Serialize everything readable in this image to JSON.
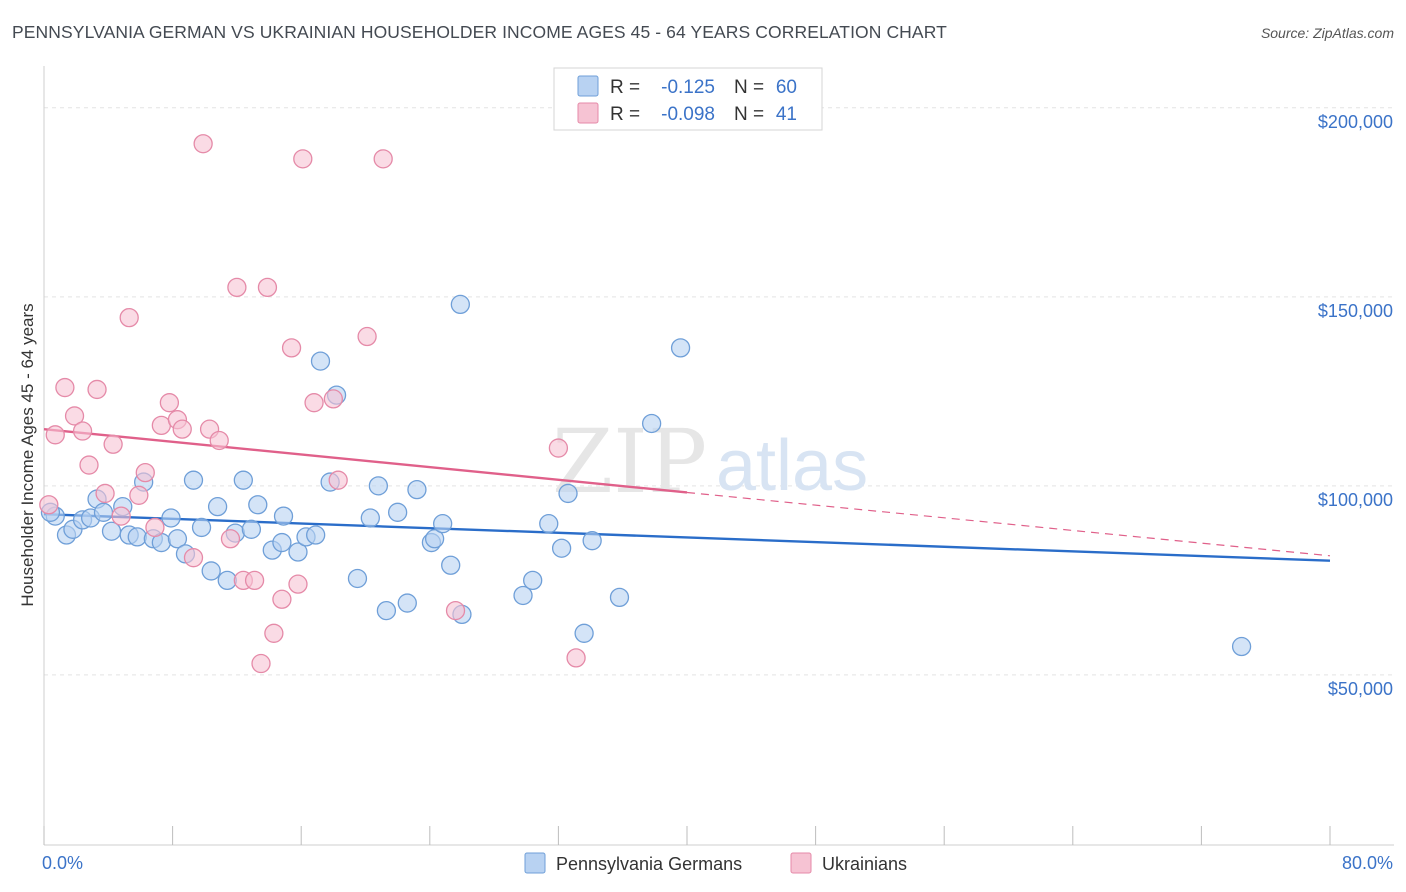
{
  "title": "PENNSYLVANIA GERMAN VS UKRAINIAN HOUSEHOLDER INCOME AGES 45 - 64 YEARS CORRELATION CHART",
  "source": "Source: ZipAtlas.com",
  "watermark": {
    "zip": "ZIP",
    "atlas": "atlas"
  },
  "colors": {
    "blue_fill": "#b8d2f2",
    "blue_stroke": "#6f9fd8",
    "blue_line": "#2a6dc9",
    "pink_fill": "#f6c3d3",
    "pink_stroke": "#e58aa8",
    "pink_line": "#e0608a",
    "tick_text": "#3b73c8",
    "grid": "#e4e4e4"
  },
  "legend": {
    "rows": [
      {
        "r_label": "R =",
        "r_value": "-0.125",
        "n_label": "N =",
        "n_value": "60"
      },
      {
        "r_label": "R =",
        "r_value": "-0.098",
        "n_label": "N =",
        "n_value": "41"
      }
    ]
  },
  "chart_data": {
    "type": "scatter",
    "title": "PENNSYLVANIA GERMAN VS UKRAINIAN HOUSEHOLDER INCOME AGES 45 - 64 YEARS CORRELATION CHART",
    "xlabel": "",
    "ylabel": "Householder Income Ages 45 - 64 years",
    "xlim": [
      0,
      80
    ],
    "ylim": [
      5000,
      210000
    ],
    "x_tick_labels": [
      "0.0%",
      "80.0%"
    ],
    "y_ticks": [
      50000,
      100000,
      150000,
      200000
    ],
    "y_tick_labels": [
      "$50,000",
      "$100,000",
      "$150,000",
      "$200,000"
    ],
    "grid": true,
    "legend_position": "top-center",
    "series": [
      {
        "name": "Pennsylvania Germans",
        "color": "#6f9fd8",
        "trend": {
          "x": [
            0,
            80
          ],
          "y": [
            92500,
            80200
          ],
          "dashed_from": null
        },
        "points": [
          [
            0.7,
            92000
          ],
          [
            1.4,
            87000
          ],
          [
            1.8,
            88500
          ],
          [
            2.4,
            91000
          ],
          [
            2.9,
            91500
          ],
          [
            3.3,
            96500
          ],
          [
            3.7,
            93000
          ],
          [
            4.2,
            88000
          ],
          [
            4.9,
            94500
          ],
          [
            5.3,
            87000
          ],
          [
            5.8,
            86500
          ],
          [
            6.2,
            101000
          ],
          [
            6.8,
            86000
          ],
          [
            7.3,
            85000
          ],
          [
            7.9,
            91500
          ],
          [
            8.3,
            86000
          ],
          [
            8.8,
            82000
          ],
          [
            9.3,
            101500
          ],
          [
            9.8,
            89000
          ],
          [
            10.4,
            77500
          ],
          [
            10.8,
            94500
          ],
          [
            11.4,
            75000
          ],
          [
            11.9,
            87500
          ],
          [
            12.4,
            101500
          ],
          [
            12.9,
            88500
          ],
          [
            13.3,
            95000
          ],
          [
            14.2,
            83000
          ],
          [
            14.9,
            92000
          ],
          [
            14.8,
            85000
          ],
          [
            15.8,
            82500
          ],
          [
            16.3,
            86500
          ],
          [
            16.9,
            87000
          ],
          [
            17.2,
            133000
          ],
          [
            17.8,
            101000
          ],
          [
            18.2,
            124000
          ],
          [
            19.5,
            75500
          ],
          [
            20.3,
            91500
          ],
          [
            20.8,
            100000
          ],
          [
            21.3,
            67000
          ],
          [
            22.0,
            93000
          ],
          [
            22.6,
            69000
          ],
          [
            23.2,
            99000
          ],
          [
            24.1,
            85000
          ],
          [
            24.3,
            86000
          ],
          [
            24.8,
            90000
          ],
          [
            25.3,
            79000
          ],
          [
            25.9,
            148000
          ],
          [
            26.0,
            66000
          ],
          [
            29.8,
            71000
          ],
          [
            30.4,
            75000
          ],
          [
            31.4,
            90000
          ],
          [
            32.2,
            83500
          ],
          [
            32.6,
            98000
          ],
          [
            33.6,
            61000
          ],
          [
            34.1,
            85500
          ],
          [
            35.8,
            70500
          ],
          [
            37.8,
            116500
          ],
          [
            39.6,
            136500
          ],
          [
            74.5,
            57500
          ],
          [
            0.4,
            93000
          ]
        ]
      },
      {
        "name": "Ukrainians",
        "color": "#e58aa8",
        "trend": {
          "x": [
            0,
            80
          ],
          "y": [
            115000,
            81500
          ],
          "dashed_from": 40
        },
        "points": [
          [
            0.3,
            95000
          ],
          [
            0.7,
            113500
          ],
          [
            1.3,
            126000
          ],
          [
            1.9,
            118500
          ],
          [
            2.4,
            114500
          ],
          [
            2.8,
            105500
          ],
          [
            3.3,
            125500
          ],
          [
            3.8,
            98000
          ],
          [
            4.3,
            111000
          ],
          [
            4.8,
            92000
          ],
          [
            5.3,
            144500
          ],
          [
            5.9,
            97500
          ],
          [
            6.3,
            103500
          ],
          [
            6.9,
            89000
          ],
          [
            7.3,
            116000
          ],
          [
            7.8,
            122000
          ],
          [
            8.3,
            117500
          ],
          [
            8.6,
            115000
          ],
          [
            9.3,
            81000
          ],
          [
            9.9,
            190500
          ],
          [
            10.3,
            115000
          ],
          [
            10.9,
            112000
          ],
          [
            11.6,
            86000
          ],
          [
            12.0,
            152500
          ],
          [
            12.4,
            75000
          ],
          [
            13.1,
            75000
          ],
          [
            13.9,
            152500
          ],
          [
            14.3,
            61000
          ],
          [
            14.8,
            70000
          ],
          [
            15.4,
            136500
          ],
          [
            15.8,
            74000
          ],
          [
            16.8,
            122000
          ],
          [
            18.0,
            123000
          ],
          [
            18.3,
            101500
          ],
          [
            16.1,
            186500
          ],
          [
            20.1,
            139500
          ],
          [
            21.1,
            186500
          ],
          [
            25.6,
            67000
          ],
          [
            32.0,
            110000
          ],
          [
            33.1,
            54500
          ],
          [
            13.5,
            53000
          ]
        ]
      }
    ]
  },
  "bottom_legend": [
    {
      "label": "Pennsylvania Germans"
    },
    {
      "label": "Ukrainians"
    }
  ]
}
